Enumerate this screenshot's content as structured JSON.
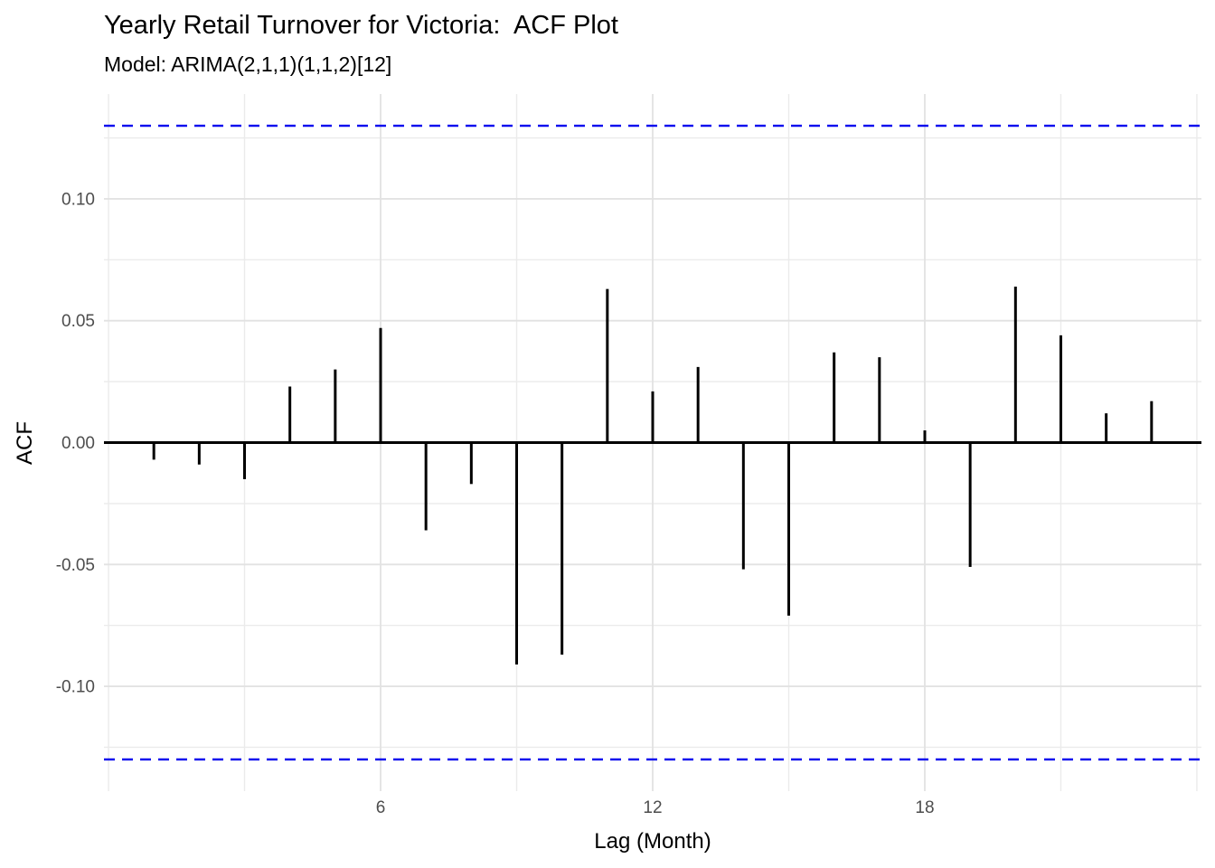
{
  "chart_data": {
    "type": "bar",
    "variant": "acf-stem-plot",
    "title": "Yearly Retail Turnover for Victoria:  ACF Plot",
    "subtitle": "Model: ARIMA(2,1,1)(1,1,2)[12]",
    "xlabel": "Lag (Month)",
    "ylabel": "ACF",
    "lags": [
      1,
      2,
      3,
      4,
      5,
      6,
      7,
      8,
      9,
      10,
      11,
      12,
      13,
      14,
      15,
      16,
      17,
      18,
      19,
      20,
      21,
      22,
      23
    ],
    "values": [
      -0.007,
      -0.009,
      -0.015,
      0.023,
      0.03,
      0.047,
      -0.036,
      -0.017,
      -0.091,
      -0.087,
      0.063,
      0.021,
      0.031,
      -0.052,
      -0.071,
      0.037,
      0.035,
      0.005,
      -0.051,
      0.064,
      0.044,
      0.012,
      0.017
    ],
    "confidence_bounds": {
      "upper": 0.13,
      "lower": -0.13,
      "line_style": "dashed"
    },
    "xlim": [
      -0.1,
      24.1
    ],
    "ylim": [
      -0.143,
      0.143
    ],
    "x_ticks": [
      {
        "value": 6,
        "label": "6"
      },
      {
        "value": 12,
        "label": "12"
      },
      {
        "value": 18,
        "label": "18"
      }
    ],
    "x_minor_gridlines": [
      0,
      3,
      9,
      15,
      21,
      24
    ],
    "y_ticks": [
      {
        "value": 0.1,
        "label": "0.10"
      },
      {
        "value": 0.05,
        "label": "0.05"
      },
      {
        "value": 0.0,
        "label": "0.00"
      },
      {
        "value": -0.05,
        "label": "-0.05"
      },
      {
        "value": -0.1,
        "label": "-0.10"
      }
    ],
    "y_minor_gridlines": [
      -0.125,
      -0.075,
      -0.025,
      0.025,
      0.075,
      0.125
    ],
    "grid": "on",
    "legend": "none",
    "colors": {
      "series": "#000000",
      "zero_axis": "#000000",
      "confidence_line": "#0000EE",
      "tick_label": "#4D4D4D",
      "grid_major": "#E2E2E2",
      "grid_minor": "#EBEBEB"
    }
  }
}
